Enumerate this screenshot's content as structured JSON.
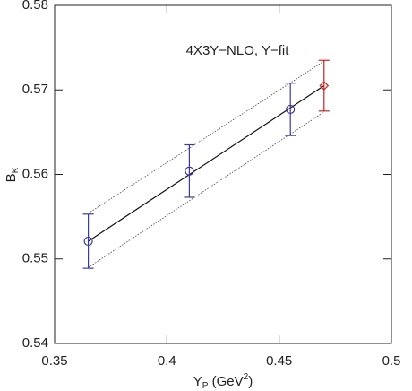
{
  "chart_data": {
    "type": "scatter",
    "title": "4X3Y−NLO, Y−fit",
    "xlabel": "Y",
    "xlabel_sub": "P",
    "xlabel_unit": " (GeV",
    "xlabel_sup": "2",
    "xlabel_end": ")",
    "ylabel": "B",
    "ylabel_sub": "K",
    "xlim": [
      0.35,
      0.5
    ],
    "xticks": [
      0.35,
      0.4,
      0.45,
      0.5
    ],
    "ylim": [
      0.54,
      0.58
    ],
    "yticks": [
      0.54,
      0.55,
      0.56,
      0.57,
      0.58
    ],
    "series": [
      {
        "color": "#3a3aa0",
        "marker": "circle",
        "x": [
          0.365,
          0.41,
          0.455
        ],
        "values": [
          0.5521,
          0.5604,
          0.5677
        ],
        "errors": [
          0.0032,
          0.0031,
          0.0031
        ]
      },
      {
        "color": "#d02020",
        "marker": "diamond",
        "x": [
          0.47
        ],
        "values": [
          0.5705
        ],
        "errors": [
          0.003
        ]
      }
    ],
    "lines": [
      {
        "color": "#111111",
        "style": "solid",
        "x": [
          0.365,
          0.47
        ],
        "values": [
          0.5521,
          0.5705
        ]
      },
      {
        "color": "#444444",
        "style": "dotted",
        "x": [
          0.365,
          0.47
        ],
        "values": [
          0.5554,
          0.5734
        ]
      },
      {
        "color": "#444444",
        "style": "dotted",
        "x": [
          0.365,
          0.47
        ],
        "values": [
          0.549,
          0.5674
        ]
      }
    ]
  }
}
